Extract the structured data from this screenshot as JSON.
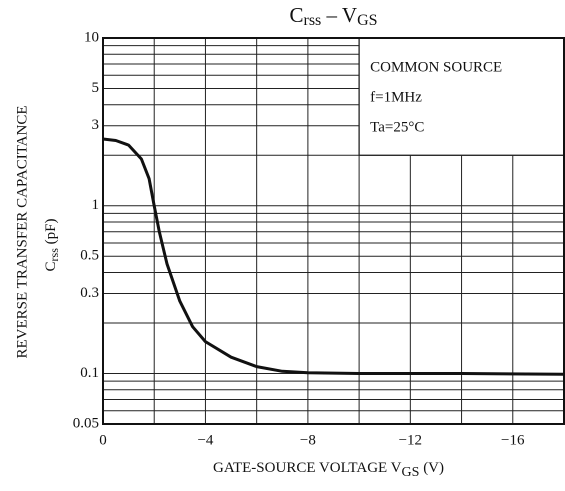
{
  "chart_data": {
    "type": "line",
    "title": [
      "C",
      "rss",
      " – V",
      "GS"
    ],
    "ylabel": [
      "REVERSE   TRANSFER   CAPACITANCE",
      "C",
      "rss",
      "   (pF)"
    ],
    "xlabel": [
      "GATE-SOURCE   VOLTAGE   V",
      "GS",
      " (V)"
    ],
    "annotations": [
      "COMMON SOURCE",
      "f=1MHz",
      "Ta=25°C"
    ],
    "x": [
      0,
      -0.5,
      -1,
      -1.5,
      -1.8,
      -2,
      -2.2,
      -2.5,
      -3,
      -3.5,
      -4,
      -5,
      -6,
      -7,
      -8,
      -10,
      -14,
      -18
    ],
    "series": [
      {
        "color": "#111111",
        "values": [
          2.5,
          2.45,
          2.3,
          1.9,
          1.45,
          1.0,
          0.7,
          0.45,
          0.27,
          0.19,
          0.155,
          0.125,
          0.11,
          0.103,
          0.101,
          0.1,
          0.1,
          0.099
        ]
      }
    ],
    "xlim": [
      0,
      -18
    ],
    "xticks": [
      0,
      {
        "value": -4,
        "label": "−4"
      },
      {
        "value": -8,
        "label": "−8"
      },
      {
        "value": -12,
        "label": "−12"
      },
      {
        "value": -16,
        "label": "−16"
      }
    ],
    "xminorticks": [
      -2,
      -6,
      -10,
      -14,
      -18
    ],
    "ylim": [
      0.05,
      10
    ],
    "ylog": true,
    "yticks": [
      0.05,
      0.1,
      0.3,
      0.5,
      1,
      3,
      5,
      10
    ],
    "yminorticks": [
      0.06,
      0.07,
      0.08,
      0.09,
      0.2,
      0.4,
      0.6,
      0.7,
      0.8,
      0.9,
      2,
      4,
      6,
      7,
      8,
      9
    ],
    "grid": true,
    "legend_box": {
      "xfrom": -10,
      "yfrom": 2
    }
  }
}
